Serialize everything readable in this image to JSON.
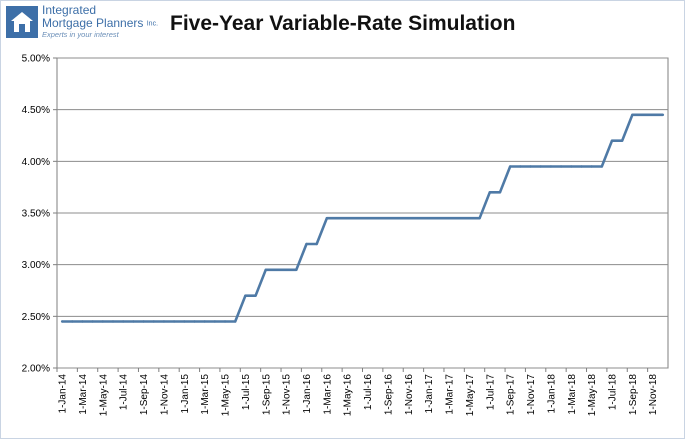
{
  "header": {
    "logo_line1": "Integrated",
    "logo_line2": "Mortgage Planners",
    "logo_inc": "Inc.",
    "logo_tagline": "Experts in your interest",
    "logo_icon": "house-icon"
  },
  "chart_data": {
    "type": "line",
    "title": "Five-Year Variable-Rate Simulation",
    "xlabel": "",
    "ylabel": "",
    "ylim": [
      0.02,
      0.05
    ],
    "y_ticks": [
      "2.00%",
      "2.50%",
      "3.00%",
      "3.50%",
      "4.00%",
      "4.50%",
      "5.00%"
    ],
    "x_tick_labels": [
      "1-Jan-14",
      "1-Mar-14",
      "1-May-14",
      "1-Jul-14",
      "1-Sep-14",
      "1-Nov-14",
      "1-Jan-15",
      "1-Mar-15",
      "1-May-15",
      "1-Jul-15",
      "1-Sep-15",
      "1-Nov-15",
      "1-Jan-16",
      "1-Mar-16",
      "1-May-16",
      "1-Jul-16",
      "1-Sep-16",
      "1-Nov-16",
      "1-Jan-17",
      "1-Mar-17",
      "1-May-17",
      "1-Jul-17",
      "1-Sep-17",
      "1-Nov-17",
      "1-Jan-18",
      "1-Mar-18",
      "1-May-18",
      "1-Jul-18",
      "1-Sep-18",
      "1-Nov-18"
    ],
    "grid": "horizontal",
    "series": [
      {
        "color": "#4f7aa6",
        "x": [
          "Jan-14",
          "Feb-14",
          "Mar-14",
          "Apr-14",
          "May-14",
          "Jun-14",
          "Jul-14",
          "Aug-14",
          "Sep-14",
          "Oct-14",
          "Nov-14",
          "Dec-14",
          "Jan-15",
          "Feb-15",
          "Mar-15",
          "Apr-15",
          "May-15",
          "Jun-15",
          "Jul-15",
          "Aug-15",
          "Sep-15",
          "Oct-15",
          "Nov-15",
          "Dec-15",
          "Jan-16",
          "Feb-16",
          "Mar-16",
          "Apr-16",
          "May-16",
          "Jun-16",
          "Jul-16",
          "Aug-16",
          "Sep-16",
          "Oct-16",
          "Nov-16",
          "Dec-16",
          "Jan-17",
          "Feb-17",
          "Mar-17",
          "Apr-17",
          "May-17",
          "Jun-17",
          "Jul-17",
          "Aug-17",
          "Sep-17",
          "Oct-17",
          "Nov-17",
          "Dec-17",
          "Jan-18",
          "Feb-18",
          "Mar-18",
          "Apr-18",
          "May-18",
          "Jun-18",
          "Jul-18",
          "Aug-18",
          "Sep-18",
          "Oct-18",
          "Nov-18",
          "Dec-18"
        ],
        "values": [
          0.0245,
          0.0245,
          0.0245,
          0.0245,
          0.0245,
          0.0245,
          0.0245,
          0.0245,
          0.0245,
          0.0245,
          0.0245,
          0.0245,
          0.0245,
          0.0245,
          0.0245,
          0.0245,
          0.0245,
          0.0245,
          0.027,
          0.027,
          0.0295,
          0.0295,
          0.0295,
          0.0295,
          0.032,
          0.032,
          0.0345,
          0.0345,
          0.0345,
          0.0345,
          0.0345,
          0.0345,
          0.0345,
          0.0345,
          0.0345,
          0.0345,
          0.0345,
          0.0345,
          0.0345,
          0.0345,
          0.0345,
          0.0345,
          0.037,
          0.037,
          0.0395,
          0.0395,
          0.0395,
          0.0395,
          0.0395,
          0.0395,
          0.0395,
          0.0395,
          0.0395,
          0.0395,
          0.042,
          0.042,
          0.0445,
          0.0445,
          0.0445,
          0.0445
        ]
      }
    ]
  }
}
